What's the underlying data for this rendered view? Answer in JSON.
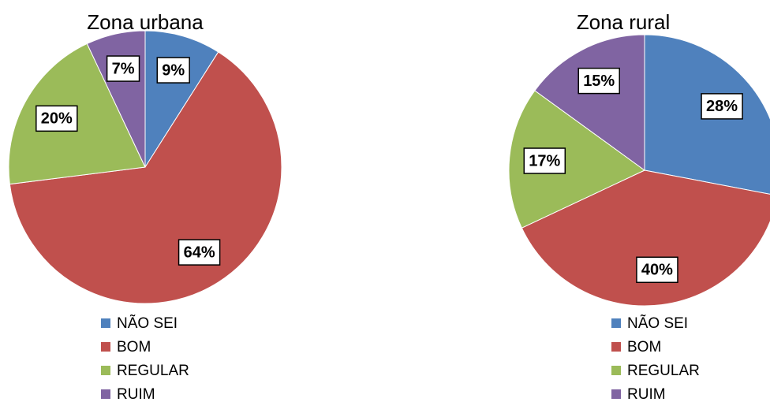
{
  "chart_data": [
    {
      "type": "pie",
      "title": "Zona urbana",
      "categories": [
        "NÃO SEI",
        "BOM",
        "REGULAR",
        "RUIM"
      ],
      "values": [
        9,
        64,
        20,
        7
      ],
      "value_labels": [
        "9%",
        "64%",
        "20%",
        "7%"
      ],
      "colors": [
        "#4F81BD",
        "#C0504D",
        "#9BBB59",
        "#8064A2"
      ]
    },
    {
      "type": "pie",
      "title": "Zona rural",
      "categories": [
        "NÃO SEI",
        "BOM",
        "REGULAR",
        "RUIM"
      ],
      "values": [
        28,
        40,
        17,
        15
      ],
      "value_labels": [
        "28%",
        "40%",
        "17%",
        "15%"
      ],
      "colors": [
        "#4F81BD",
        "#C0504D",
        "#9BBB59",
        "#8064A2"
      ]
    }
  ]
}
